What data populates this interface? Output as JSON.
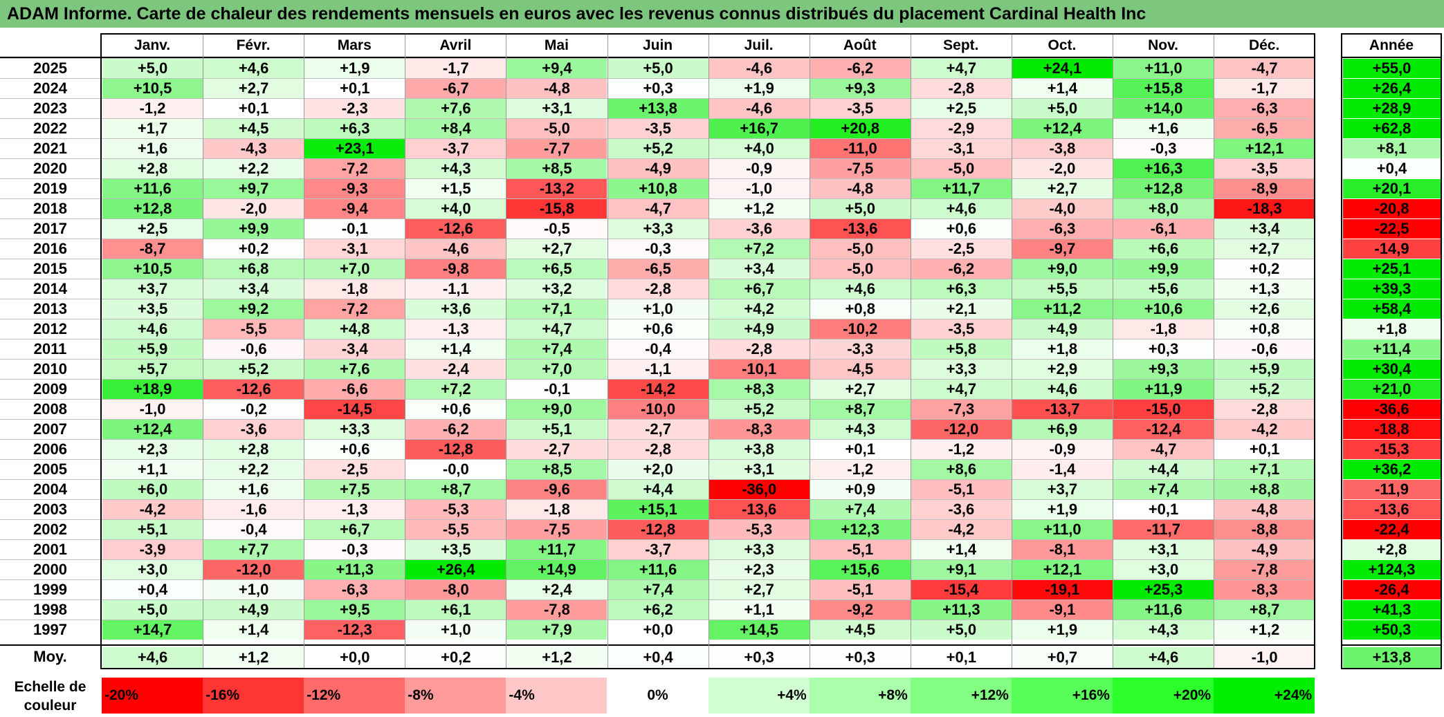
{
  "title": "ADAM Informe. Carte de chaleur des rendements mensuels en euros avec les revenus connus distribués du placement Cardinal Health Inc",
  "chart_data": {
    "type": "heatmap",
    "title": "ADAM Informe. Carte de chaleur des rendements mensuels en euros avec les revenus connus distribués du placement Cardinal Health Inc",
    "months": [
      "Janv.",
      "Févr.",
      "Mars",
      "Avril",
      "Mai",
      "Juin",
      "Juil.",
      "Août",
      "Sept.",
      "Oct.",
      "Nov.",
      "Déc."
    ],
    "year_header": "Année",
    "rows": [
      {
        "year": "2025",
        "values": [
          "+5,0",
          "+4,6",
          "+1,9",
          "-1,7",
          "+9,4",
          "+5,0",
          "-4,6",
          "-6,2",
          "+4,7",
          "+24,1",
          "+11,0",
          "-4,7"
        ],
        "annual": "+55,0"
      },
      {
        "year": "2024",
        "values": [
          "+10,5",
          "+2,7",
          "+0,1",
          "-6,7",
          "-4,8",
          "+0,3",
          "+1,9",
          "+9,3",
          "-2,8",
          "+1,4",
          "+15,8",
          "-1,7"
        ],
        "annual": "+26,4"
      },
      {
        "year": "2023",
        "values": [
          "-1,2",
          "+0,1",
          "-2,3",
          "+7,6",
          "+3,1",
          "+13,8",
          "-4,6",
          "-3,5",
          "+2,5",
          "+5,0",
          "+14,0",
          "-6,3"
        ],
        "annual": "+28,9"
      },
      {
        "year": "2022",
        "values": [
          "+1,7",
          "+4,5",
          "+6,3",
          "+8,4",
          "-5,0",
          "-3,5",
          "+16,7",
          "+20,8",
          "-2,9",
          "+12,4",
          "+1,6",
          "-6,5"
        ],
        "annual": "+62,8"
      },
      {
        "year": "2021",
        "values": [
          "+1,6",
          "-4,3",
          "+23,1",
          "-3,7",
          "-7,7",
          "+5,2",
          "+4,0",
          "-11,0",
          "-3,1",
          "-3,8",
          "-0,3",
          "+12,1"
        ],
        "annual": "+8,1"
      },
      {
        "year": "2020",
        "values": [
          "+2,8",
          "+2,2",
          "-7,2",
          "+4,3",
          "+8,5",
          "-4,9",
          "-0,9",
          "-7,5",
          "-5,0",
          "-2,0",
          "+16,3",
          "-3,5"
        ],
        "annual": "+0,4"
      },
      {
        "year": "2019",
        "values": [
          "+11,6",
          "+9,7",
          "-9,3",
          "+1,5",
          "-13,2",
          "+10,8",
          "-1,0",
          "-4,8",
          "+11,7",
          "+2,7",
          "+12,8",
          "-8,9"
        ],
        "annual": "+20,1"
      },
      {
        "year": "2018",
        "values": [
          "+12,8",
          "-2,0",
          "-9,4",
          "+4,0",
          "-15,8",
          "-4,7",
          "+1,2",
          "+5,0",
          "+4,6",
          "-4,0",
          "+8,0",
          "-18,3"
        ],
        "annual": "-20,8"
      },
      {
        "year": "2017",
        "values": [
          "+2,5",
          "+9,9",
          "-0,1",
          "-12,6",
          "-0,5",
          "+3,3",
          "-3,6",
          "-13,6",
          "+0,6",
          "-6,3",
          "-6,1",
          "+3,4"
        ],
        "annual": "-22,5"
      },
      {
        "year": "2016",
        "values": [
          "-8,7",
          "+0,2",
          "-3,1",
          "-4,6",
          "+2,7",
          "-0,3",
          "+7,2",
          "-5,0",
          "-2,5",
          "-9,7",
          "+6,6",
          "+2,7"
        ],
        "annual": "-14,9"
      },
      {
        "year": "2015",
        "values": [
          "+10,5",
          "+6,8",
          "+7,0",
          "-9,8",
          "+6,5",
          "-6,5",
          "+3,4",
          "-5,0",
          "-6,2",
          "+9,0",
          "+9,9",
          "+0,2"
        ],
        "annual": "+25,1"
      },
      {
        "year": "2014",
        "values": [
          "+3,7",
          "+3,4",
          "-1,8",
          "-1,1",
          "+3,2",
          "-2,8",
          "+6,7",
          "+4,6",
          "+6,3",
          "+5,5",
          "+5,6",
          "+1,3"
        ],
        "annual": "+39,3"
      },
      {
        "year": "2013",
        "values": [
          "+3,5",
          "+9,2",
          "-7,2",
          "+3,6",
          "+7,1",
          "+1,0",
          "+4,2",
          "+0,8",
          "+2,1",
          "+11,2",
          "+10,6",
          "+2,6"
        ],
        "annual": "+58,4"
      },
      {
        "year": "2012",
        "values": [
          "+4,6",
          "-5,5",
          "+4,8",
          "-1,3",
          "+4,7",
          "+0,6",
          "+4,9",
          "-10,2",
          "-3,5",
          "+4,9",
          "-1,8",
          "+0,8"
        ],
        "annual": "+1,8"
      },
      {
        "year": "2011",
        "values": [
          "+5,9",
          "-0,6",
          "-3,4",
          "+1,4",
          "+7,4",
          "-0,4",
          "-2,8",
          "-3,3",
          "+5,8",
          "+1,8",
          "+0,3",
          "-0,6"
        ],
        "annual": "+11,4"
      },
      {
        "year": "2010",
        "values": [
          "+5,7",
          "+5,2",
          "+7,6",
          "-2,4",
          "+7,0",
          "-1,1",
          "-10,1",
          "-4,5",
          "+3,3",
          "+2,9",
          "+9,3",
          "+5,9"
        ],
        "annual": "+30,4"
      },
      {
        "year": "2009",
        "values": [
          "+18,9",
          "-12,6",
          "-6,6",
          "+7,2",
          "-0,1",
          "-14,2",
          "+8,3",
          "+2,7",
          "+4,7",
          "+4,6",
          "+11,9",
          "+5,2"
        ],
        "annual": "+21,0"
      },
      {
        "year": "2008",
        "values": [
          "-1,0",
          "-0,2",
          "-14,5",
          "+0,6",
          "+9,0",
          "-10,0",
          "+5,2",
          "+8,7",
          "-7,3",
          "-13,7",
          "-15,0",
          "-2,8"
        ],
        "annual": "-36,6"
      },
      {
        "year": "2007",
        "values": [
          "+12,4",
          "-3,6",
          "+3,3",
          "-6,2",
          "+5,1",
          "-2,7",
          "-8,3",
          "+4,3",
          "-12,0",
          "+6,9",
          "-12,4",
          "-4,2"
        ],
        "annual": "-18,8"
      },
      {
        "year": "2006",
        "values": [
          "+2,3",
          "+2,8",
          "+0,6",
          "-12,8",
          "-2,7",
          "-2,8",
          "+3,8",
          "+0,1",
          "-1,2",
          "-0,9",
          "-4,7",
          "+0,1"
        ],
        "annual": "-15,3"
      },
      {
        "year": "2005",
        "values": [
          "+1,1",
          "+2,2",
          "-2,5",
          "-0,0",
          "+8,5",
          "+2,0",
          "+3,1",
          "-1,2",
          "+8,6",
          "-1,4",
          "+4,4",
          "+7,1"
        ],
        "annual": "+36,2"
      },
      {
        "year": "2004",
        "values": [
          "+6,0",
          "+1,6",
          "+7,5",
          "+8,7",
          "-9,6",
          "+4,4",
          "-36,0",
          "+0,9",
          "-5,1",
          "+3,7",
          "+7,4",
          "+8,8"
        ],
        "annual": "-11,9"
      },
      {
        "year": "2003",
        "values": [
          "-4,2",
          "-1,6",
          "-1,3",
          "-5,3",
          "-1,8",
          "+15,1",
          "-13,6",
          "+7,4",
          "-3,6",
          "+1,9",
          "+0,1",
          "-4,8"
        ],
        "annual": "-13,6"
      },
      {
        "year": "2002",
        "values": [
          "+5,1",
          "-0,4",
          "+6,7",
          "-5,5",
          "-7,5",
          "-12,8",
          "-5,3",
          "+12,3",
          "-4,2",
          "+11,0",
          "-11,7",
          "-8,8"
        ],
        "annual": "-22,4"
      },
      {
        "year": "2001",
        "values": [
          "-3,9",
          "+7,7",
          "-0,3",
          "+3,5",
          "+11,7",
          "-3,7",
          "+3,3",
          "-5,1",
          "+1,4",
          "-8,1",
          "+3,1",
          "-4,9"
        ],
        "annual": "+2,8"
      },
      {
        "year": "2000",
        "values": [
          "+3,0",
          "-12,0",
          "+11,3",
          "+26,4",
          "+14,9",
          "+11,6",
          "+2,3",
          "+15,6",
          "+9,1",
          "+12,1",
          "+3,0",
          "-7,8"
        ],
        "annual": "+124,3"
      },
      {
        "year": "1999",
        "values": [
          "+0,4",
          "+1,0",
          "-6,3",
          "-8,0",
          "+2,4",
          "+7,4",
          "+2,7",
          "-5,1",
          "-15,4",
          "-19,1",
          "+25,3",
          "-8,3"
        ],
        "annual": "-26,4"
      },
      {
        "year": "1998",
        "values": [
          "+5,0",
          "+4,9",
          "+9,5",
          "+6,1",
          "-7,8",
          "+6,2",
          "+1,1",
          "-9,2",
          "+11,3",
          "-9,1",
          "+11,6",
          "+8,7"
        ],
        "annual": "+41,3"
      },
      {
        "year": "1997",
        "values": [
          "+14,7",
          "+1,4",
          "-12,3",
          "+1,0",
          "+7,9",
          "+0,0",
          "+14,5",
          "+4,5",
          "+5,0",
          "+1,9",
          "+4,3",
          "+1,2"
        ],
        "annual": "+50,3"
      }
    ],
    "average": {
      "label": "Moy.",
      "values": [
        "+4,6",
        "+1,2",
        "+0,0",
        "+0,2",
        "+1,2",
        "+0,4",
        "+0,3",
        "+0,3",
        "+0,1",
        "+0,7",
        "+4,6",
        "-1,0"
      ],
      "annual": "+13,8"
    },
    "color_scale": {
      "label": "Echelle de couleur",
      "stops": [
        "-20%",
        "-16%",
        "-12%",
        "-8%",
        "-4%",
        "0%",
        "+4%",
        "+8%",
        "+12%",
        "+16%",
        "+20%",
        "+24%"
      ],
      "colors": [
        "#ff0000",
        "#ff3535",
        "#ff6b6b",
        "#ff9a9a",
        "#ffc8c8",
        "#ffffff",
        "#d2ffd2",
        "#aaffaa",
        "#82ff82",
        "#59ff59",
        "#2cff2c",
        "#00ef00"
      ]
    }
  }
}
